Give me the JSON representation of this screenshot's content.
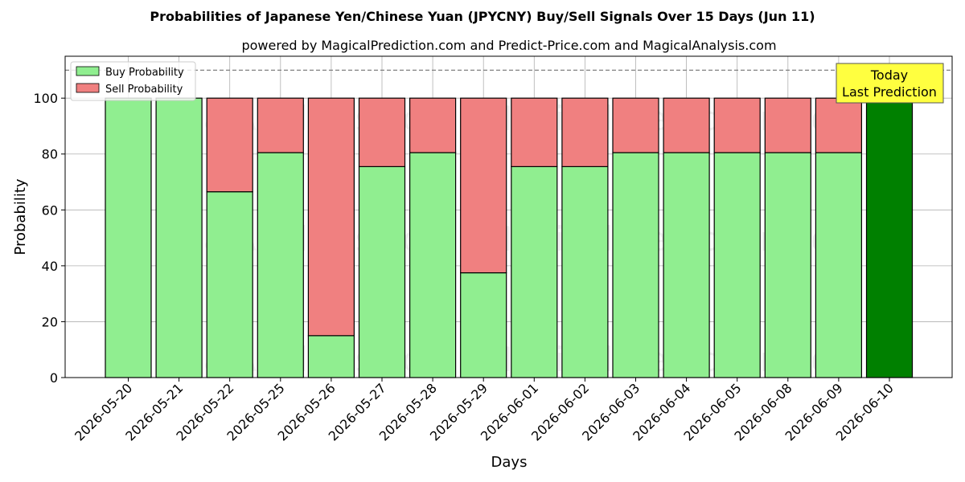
{
  "chart_data": {
    "type": "bar",
    "stacked": true,
    "title": "Probabilities of Japanese Yen/Chinese Yuan (JPYCNY) Buy/Sell Signals Over 15 Days (Jun 11)",
    "subtitle": "powered by MagicalPrediction.com and Predict-Price.com and MagicalAnalysis.com",
    "xlabel": "Days",
    "ylabel": "Probability",
    "ylim": [
      0,
      115
    ],
    "yticks": [
      0,
      20,
      40,
      60,
      80,
      100
    ],
    "grid": true,
    "legend_position": "top-left",
    "reference_line": 110,
    "categories": [
      "2026-05-20",
      "2026-05-21",
      "2026-05-22",
      "2026-05-25",
      "2026-05-26",
      "2026-05-27",
      "2026-05-28",
      "2026-05-29",
      "2026-06-01",
      "2026-06-02",
      "2026-06-03",
      "2026-06-04",
      "2026-06-05",
      "2026-06-08",
      "2026-06-09",
      "2026-06-10"
    ],
    "series": [
      {
        "name": "Buy Probability",
        "color": "#90ee90",
        "values": [
          100,
          100,
          66.5,
          80.5,
          15,
          75.5,
          80.5,
          37.5,
          75.5,
          75.5,
          80.5,
          80.5,
          80.5,
          80.5,
          80.5,
          100
        ]
      },
      {
        "name": "Sell Probability",
        "color": "#f08080",
        "values": [
          0,
          0,
          33.5,
          19.5,
          85,
          24.5,
          19.5,
          62.5,
          24.5,
          24.5,
          19.5,
          19.5,
          19.5,
          19.5,
          19.5,
          0
        ]
      }
    ],
    "highlight": {
      "category": "2026-06-10",
      "color": "#008000"
    },
    "annotation": {
      "lines": [
        "Today",
        "Last Prediction"
      ],
      "background": "#ffff40"
    },
    "watermarks": [
      "MagicalAnalysis.com",
      "MagicalPrediction.com"
    ]
  }
}
